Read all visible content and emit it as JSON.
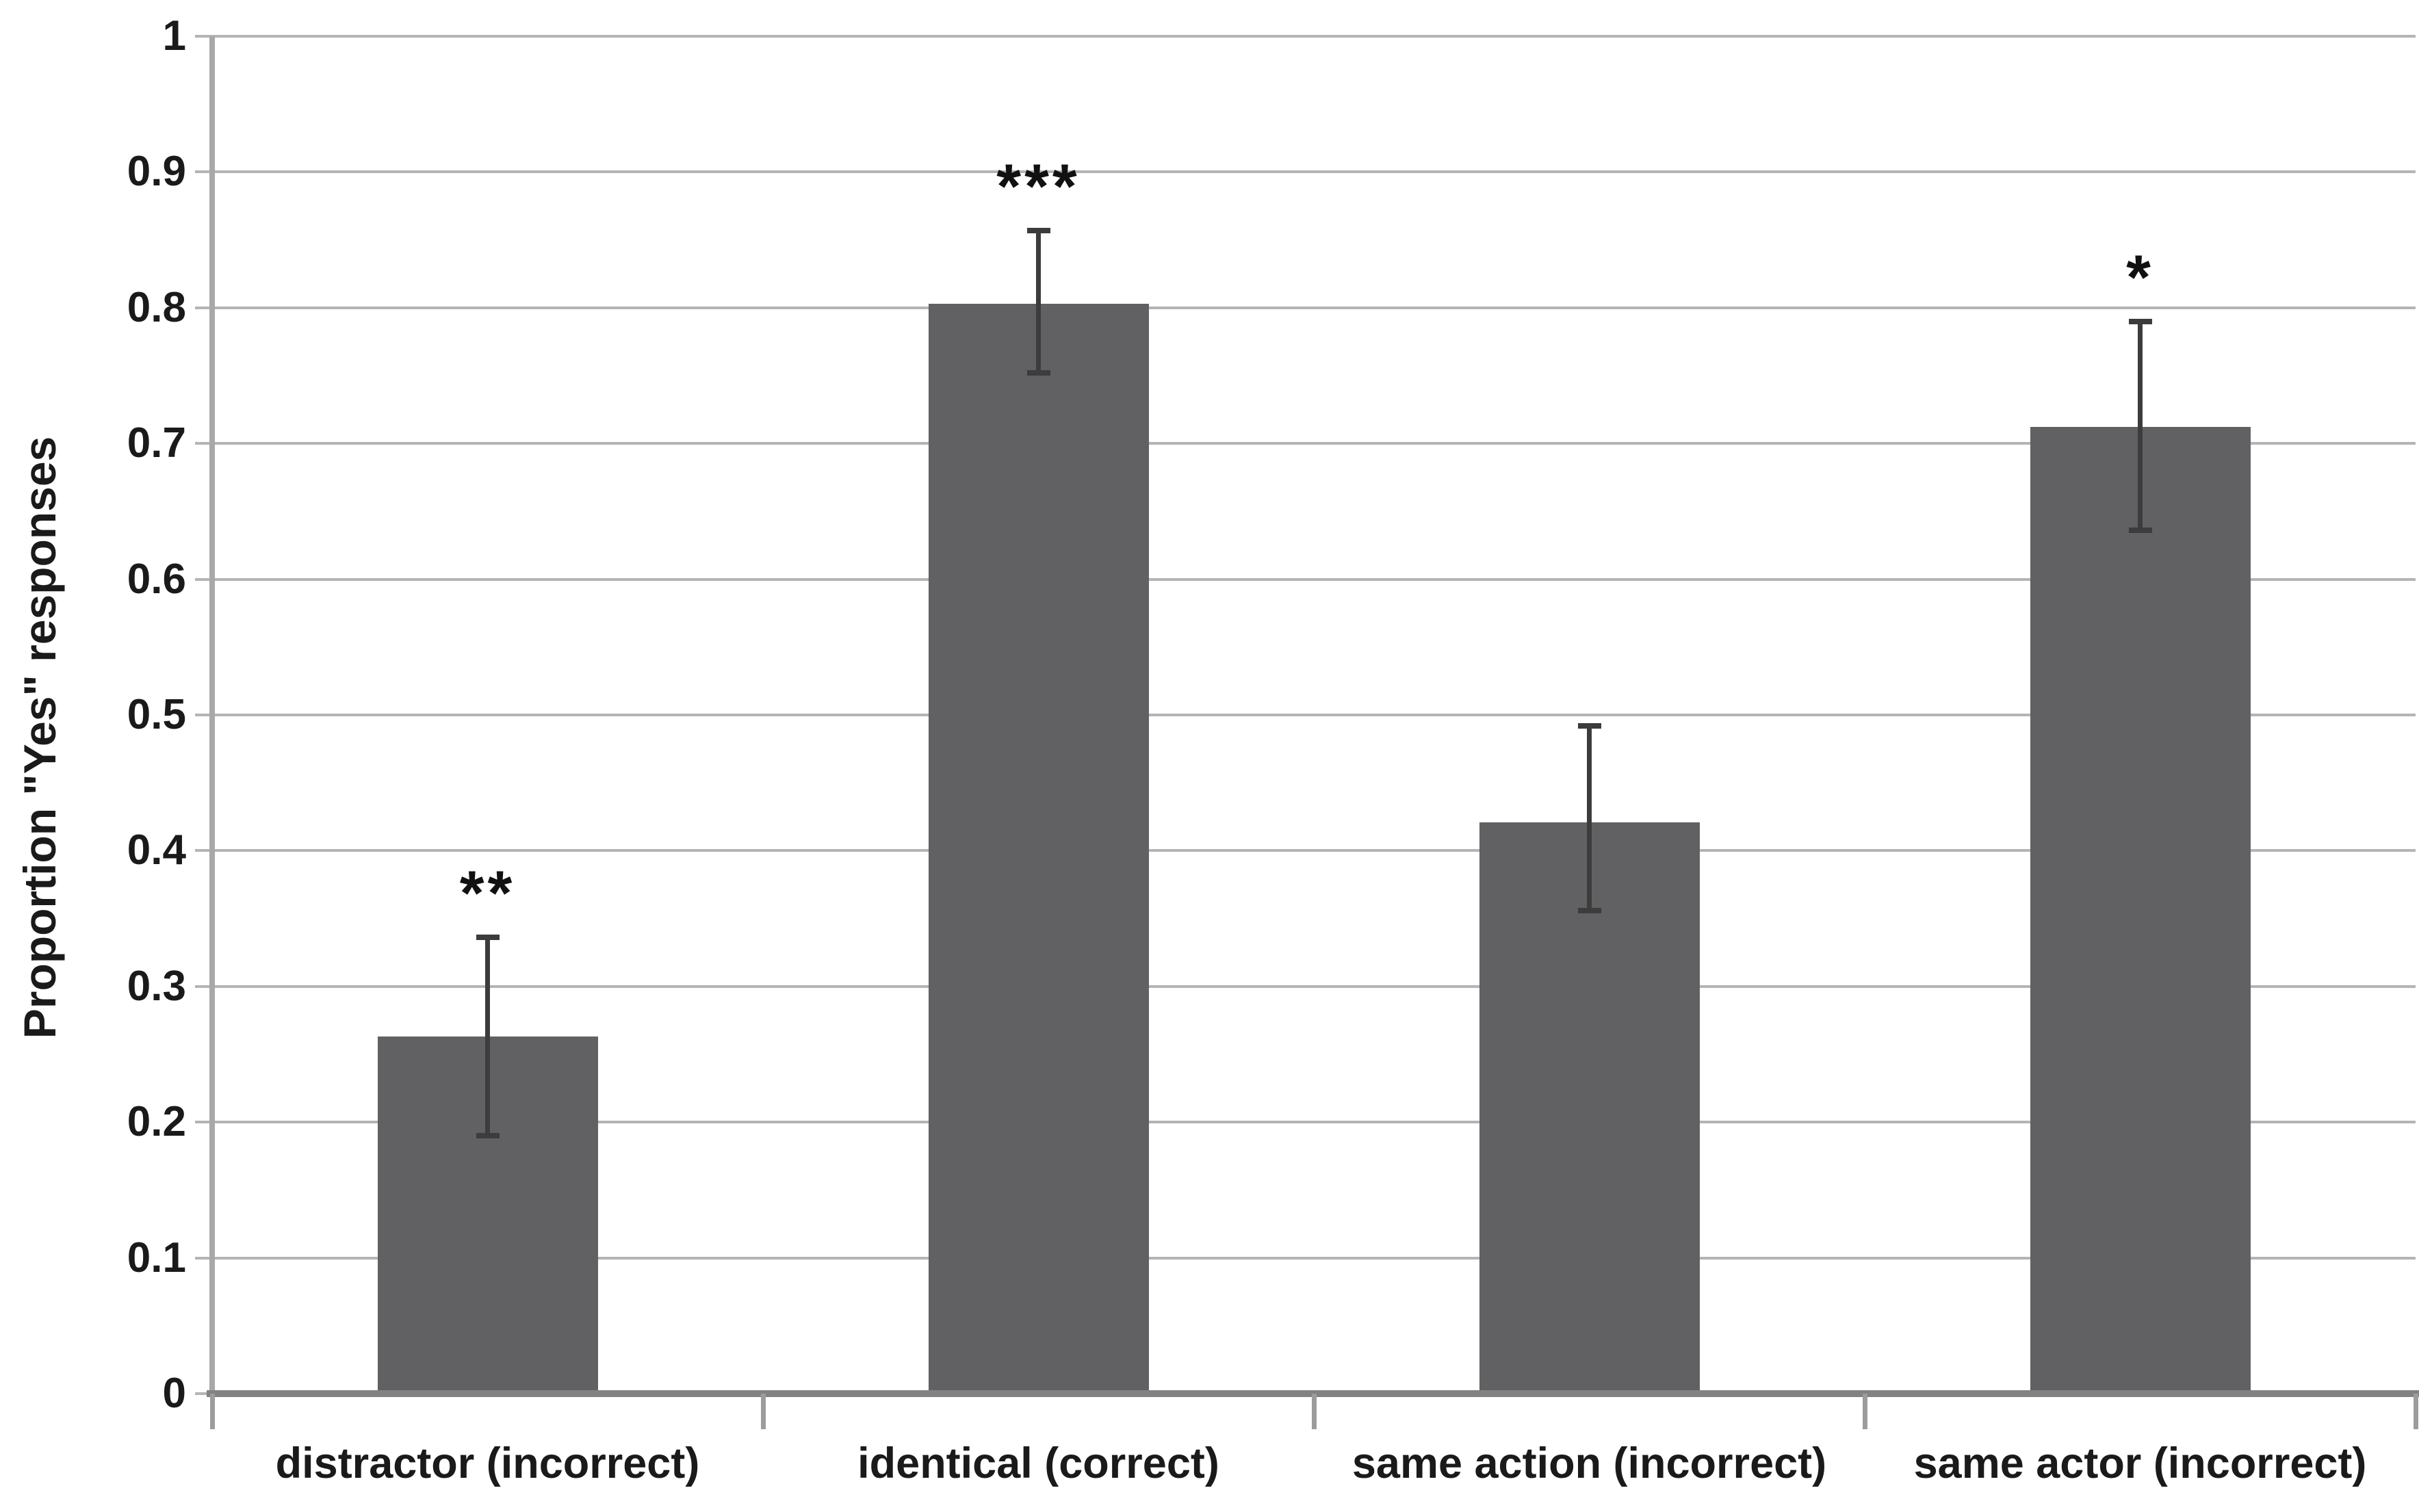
{
  "chart_data": {
    "type": "bar",
    "title": "",
    "xlabel": "",
    "ylabel": "Proportion \"Yes\" responses",
    "ylim": [
      0,
      1
    ],
    "y_tick_step": 0.1,
    "y_tick_labels": [
      "0",
      "0.1",
      "0.2",
      "0.3",
      "0.4",
      "0.5",
      "0.6",
      "0.7",
      "0.8",
      "0.9",
      "1"
    ],
    "grid": true,
    "legend": false,
    "bar_color": "#616163",
    "gridline_color": "#b4b4b4",
    "error_bar_color": "#3c3c3c",
    "categories": [
      "distractor (incorrect)",
      "identical (correct)",
      "same action (incorrect)",
      "same actor (incorrect)"
    ],
    "values": [
      0.263,
      0.803,
      0.421,
      0.712
    ],
    "error_low": [
      0.19,
      0.752,
      0.356,
      0.636
    ],
    "error_high": [
      0.336,
      0.857,
      0.492,
      0.79
    ],
    "significance": [
      "**",
      "***",
      "",
      "*"
    ]
  }
}
